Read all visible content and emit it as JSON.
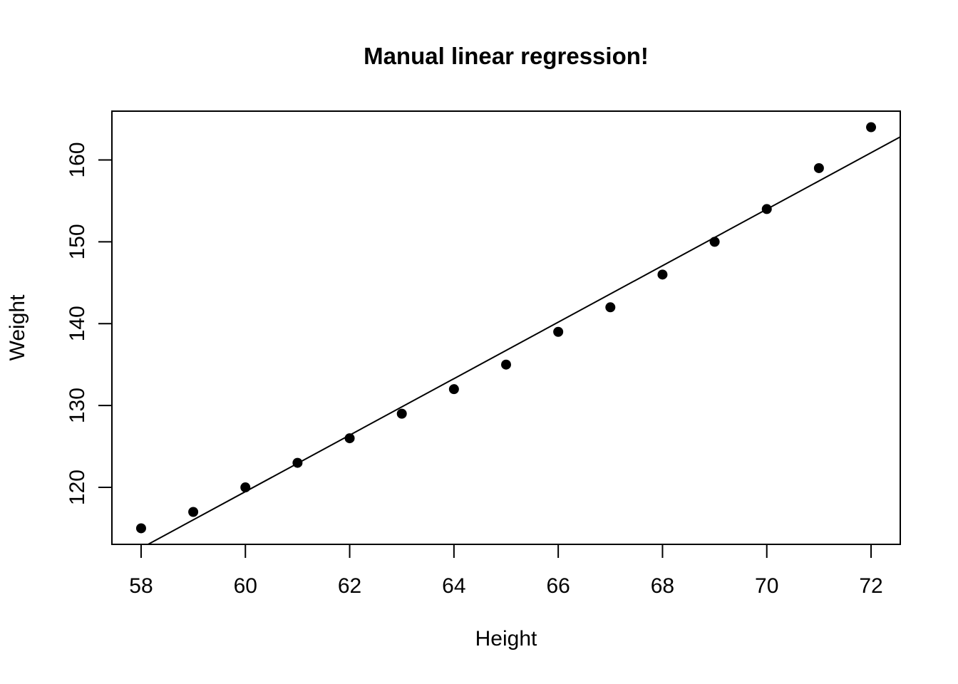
{
  "page": {
    "background_color": "#ffffff",
    "foreground_color": "#000000"
  },
  "chart_data": {
    "type": "scatter",
    "title": "Manual linear regression!",
    "xlabel": "Height",
    "ylabel": "Weight",
    "x": [
      58,
      59,
      60,
      61,
      62,
      63,
      64,
      65,
      66,
      67,
      68,
      69,
      70,
      71,
      72
    ],
    "y": [
      115,
      117,
      120,
      123,
      126,
      129,
      132,
      135,
      139,
      142,
      146,
      150,
      154,
      159,
      164
    ],
    "regression_line": {
      "slope": 3.45,
      "intercept": -87.52
    },
    "x_ticks": [
      58,
      60,
      62,
      64,
      66,
      68,
      70,
      72
    ],
    "y_ticks": [
      120,
      130,
      140,
      150,
      160
    ],
    "xlim": [
      57.44,
      72.56
    ],
    "ylim": [
      113.04,
      165.96
    ],
    "marker": "filled-circle",
    "point_color": "#000000",
    "line_color": "#000000",
    "box_color": "#000000",
    "grid": false,
    "legend": null
  }
}
